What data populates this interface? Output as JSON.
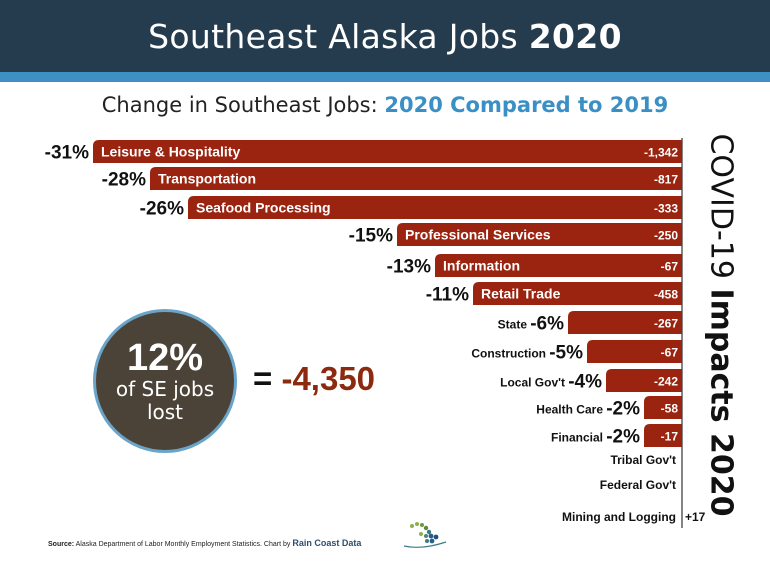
{
  "header": {
    "title_regular": "Southeast Alaska Jobs ",
    "title_bold": "2020",
    "subtitle_regular": "Change in Southeast Jobs: ",
    "subtitle_bold": "2020 Compared to 2019"
  },
  "side_label": {
    "regular": "COVID-19 ",
    "bold": "Impacts 2020"
  },
  "summary": {
    "percent": "12%",
    "line1": "of SE jobs",
    "line2": "lost",
    "equals": "=",
    "total": "-4,350"
  },
  "source": {
    "label": "Source:",
    "text": " Alaska Department of Labor Monthly Employment Statistics. Chart by ",
    "brand": "Rain Coast Data"
  },
  "colors": {
    "bar": "#9a2410",
    "header": "#253c4f",
    "accent": "#3a8fc4",
    "circle": "#4c4338"
  },
  "chart_data": {
    "type": "bar",
    "orientation": "horizontal",
    "categories": [
      "Leisure & Hospitality",
      "Transportation",
      "Seafood Processing",
      "Professional Services",
      "Information",
      "Retail Trade",
      "State",
      "Construction",
      "Local Gov't",
      "Health Care",
      "Financial",
      "Tribal Gov't",
      "Federal Gov't",
      "Mining and Logging"
    ],
    "percent_change": [
      -31,
      -28,
      -26,
      -15,
      -13,
      -11,
      -6,
      -5,
      -4,
      -2,
      -2,
      null,
      null,
      null
    ],
    "percent_labels": [
      "-31%",
      "-28%",
      "-26%",
      "-15%",
      "-13%",
      "-11%",
      "-6%",
      "-5%",
      "-4%",
      "-2%",
      "-2%",
      "",
      "",
      ""
    ],
    "job_change_labels": [
      "-1,342",
      "-817",
      "-333",
      "-250",
      "-67",
      "-458",
      "-267",
      "-67",
      "-242",
      "-58",
      "-17",
      "",
      "",
      "+17"
    ]
  }
}
